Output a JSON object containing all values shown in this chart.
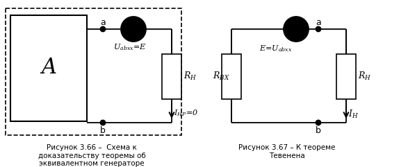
{
  "fig_width": 5.87,
  "fig_height": 2.41,
  "dpi": 100,
  "bg_color": "#ffffff",
  "line_color": "#000000",
  "caption1": "Рисунок 3.66 –  Схема к\nдоказательству теоремы об\nэквивалентном генераторе",
  "caption2": "Рисунок 3.67 – К теореме\nТевенена",
  "label_A": "A",
  "label_a1": "a",
  "label_b1": "b",
  "label_a2": "a",
  "label_b2": "b"
}
